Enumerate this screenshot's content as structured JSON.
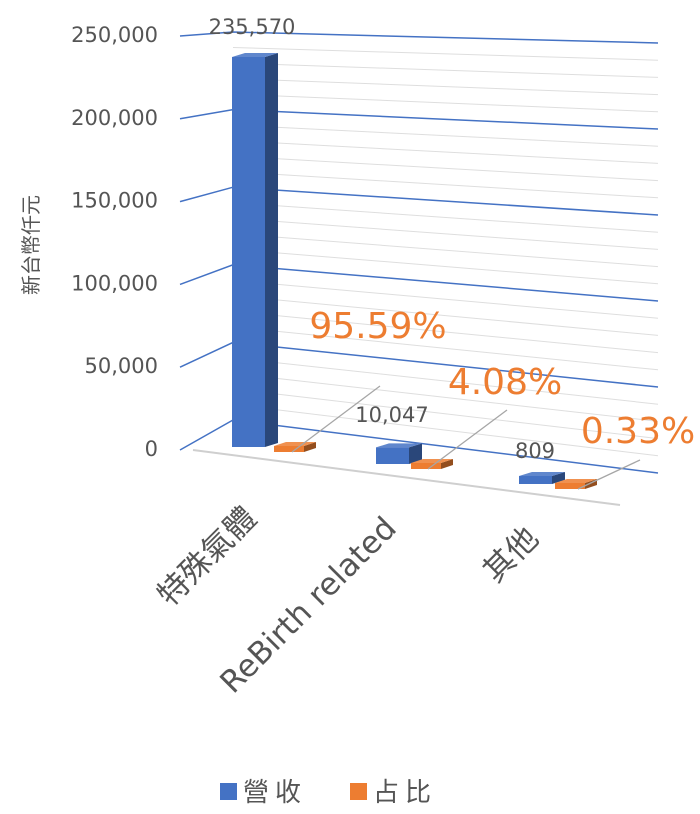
{
  "chart_data": {
    "type": "bar",
    "title": "",
    "xlabel": "",
    "ylabel": "新台幣仟元",
    "ylim": [
      0,
      250000
    ],
    "yticks": [
      "0",
      "50,000",
      "100,000",
      "150,000",
      "200,000",
      "250,000"
    ],
    "grid": true,
    "legend_position": "bottom",
    "categories": [
      "特殊氣體",
      "ReBirth related",
      "其他"
    ],
    "series": [
      {
        "name": "營收",
        "color": "#4472C4",
        "values": [
          235570,
          10047,
          809
        ],
        "labels": [
          "235,570",
          "10,047",
          "809"
        ]
      },
      {
        "name": "占比",
        "color": "#ED7D31",
        "values": [
          95.59,
          4.08,
          0.33
        ],
        "labels": [
          "95.59%",
          "4.08%",
          "0.33%"
        ]
      }
    ]
  }
}
